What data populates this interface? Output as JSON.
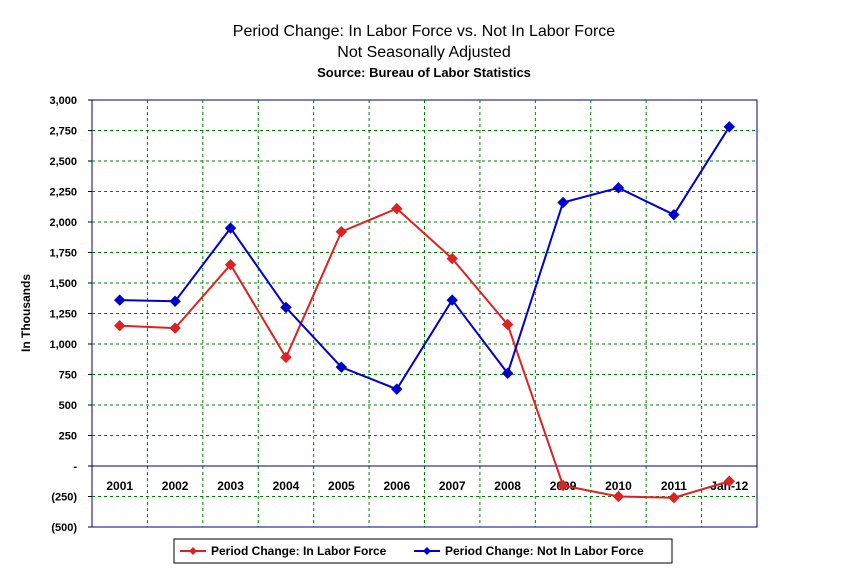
{
  "chart_data": {
    "type": "line",
    "title": "Period Change: In Labor Force vs. Not In Labor Force",
    "subtitle": "Not Seasonally Adjusted",
    "source": "Source: Bureau of Labor Statistics",
    "xlabel": "",
    "ylabel": "In Thousands",
    "categories": [
      "2001",
      "2002",
      "2003",
      "2004",
      "2005",
      "2006",
      "2007",
      "2008",
      "2009",
      "2010",
      "2011",
      "Jan-12"
    ],
    "ylim": [
      -500,
      3000
    ],
    "yticks": [
      3000,
      2750,
      2500,
      2250,
      2000,
      1750,
      1500,
      1250,
      1000,
      750,
      500,
      250,
      0,
      -250,
      -500
    ],
    "ytick_labels": [
      "3,000",
      "2,750",
      "2,500",
      "2,250",
      "2,000",
      "1,750",
      "1,500",
      "1,250",
      "1,000",
      "750",
      "500",
      "250",
      "-",
      "(250)",
      "(500)"
    ],
    "grid": true,
    "legend_position": "bottom",
    "series": [
      {
        "name": "Period Change: In Labor Force",
        "color": "#dd2222",
        "marker": "diamond",
        "values": [
          1150,
          1130,
          1650,
          890,
          1920,
          2110,
          1700,
          1160,
          -160,
          -250,
          -260,
          -125
        ]
      },
      {
        "name": "Period Change: Not In Labor Force",
        "color": "#0000cc",
        "marker": "diamond",
        "values": [
          1360,
          1350,
          1950,
          1300,
          810,
          630,
          1360,
          760,
          2160,
          2280,
          2060,
          2780
        ]
      }
    ]
  }
}
